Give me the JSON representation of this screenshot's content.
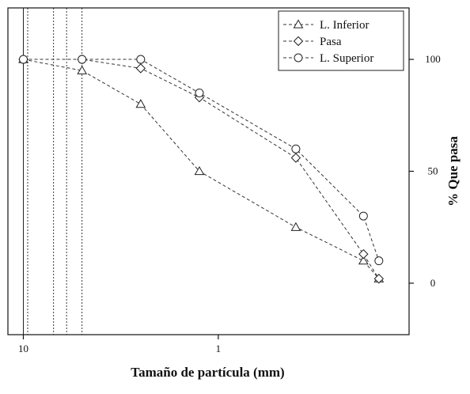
{
  "chart_data": {
    "type": "line",
    "xlabel": "Tamaño de partícula (mm)",
    "ylabel": "% Que pasa",
    "x_scale": "log",
    "x_reversed": true,
    "xlim": [
      12,
      0.105
    ],
    "ylim": [
      -23,
      123
    ],
    "x_ticks": [
      {
        "value": 10,
        "label": "10"
      },
      {
        "value": 1,
        "label": "1"
      }
    ],
    "y_ticks": [
      {
        "value": 0,
        "label": "0"
      },
      {
        "value": 50,
        "label": "50"
      },
      {
        "value": 100,
        "label": "100"
      }
    ],
    "y_axis_side": "right",
    "sieve_lines": [
      10,
      9.5,
      7,
      6,
      5
    ],
    "legend": {
      "position": "top-right"
    },
    "series": [
      {
        "name": "L. Inferior",
        "marker": "triangle",
        "x": [
          10,
          5,
          2.5,
          1.25,
          0.4,
          0.18,
          0.15
        ],
        "y": [
          100,
          95,
          80,
          50,
          25,
          10,
          2
        ]
      },
      {
        "name": "Pasa",
        "marker": "diamond",
        "x": [
          10,
          5,
          2.5,
          1.25,
          0.4,
          0.18,
          0.15
        ],
        "y": [
          100,
          100,
          96,
          83,
          56,
          13,
          2
        ]
      },
      {
        "name": "L. Superior",
        "marker": "circle",
        "x": [
          10,
          5,
          2.5,
          1.25,
          0.4,
          0.18,
          0.15
        ],
        "y": [
          100,
          100,
          100,
          85,
          60,
          30,
          10
        ]
      }
    ]
  }
}
